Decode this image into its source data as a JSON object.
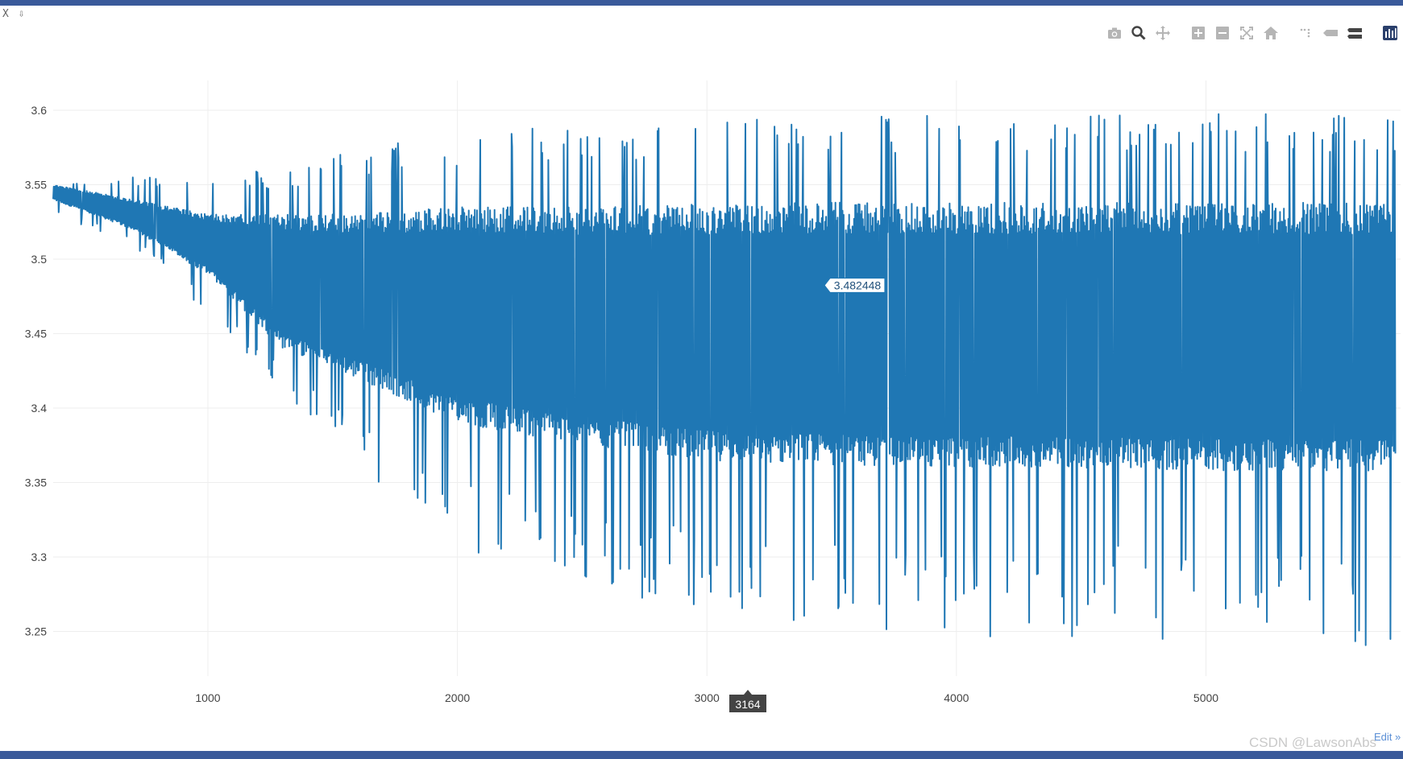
{
  "toolbar": {
    "corner_glyphs": "X ⇩",
    "buttons": [
      {
        "name": "camera-icon",
        "glyph": "📷"
      },
      {
        "name": "zoom-icon",
        "glyph": "🔍"
      },
      {
        "name": "pan-icon",
        "glyph": "✥"
      },
      {
        "name": "zoom-in-icon",
        "glyph": "⊞"
      },
      {
        "name": "zoom-out-icon",
        "glyph": "⊟"
      },
      {
        "name": "autoscale-icon",
        "glyph": "⤢"
      },
      {
        "name": "home-icon",
        "glyph": "⌂"
      },
      {
        "name": "spike-lines-icon",
        "glyph": "⋰"
      },
      {
        "name": "hover-closest-icon",
        "glyph": "▬"
      },
      {
        "name": "hover-compare-icon",
        "glyph": "☰"
      },
      {
        "name": "plotly-logo-icon",
        "glyph": "▮"
      }
    ]
  },
  "chart_data": {
    "type": "line",
    "x_range": [
      380,
      5780
    ],
    "y_range": [
      3.22,
      3.62
    ],
    "x_ticks": [
      1000,
      2000,
      3000,
      4000,
      5000
    ],
    "x_tick_labels": [
      "1000",
      "2000",
      "3000",
      "4000",
      "5000"
    ],
    "y_ticks": [
      3.25,
      3.3,
      3.35,
      3.4,
      3.45,
      3.5,
      3.55,
      3.6
    ],
    "y_tick_labels": [
      "3.25",
      "3.3",
      "3.35",
      "3.4",
      "3.45",
      "3.5",
      "3.55",
      "3.6"
    ],
    "grid": true,
    "series_color": "#1f77b4",
    "series": [
      {
        "x_start": 380,
        "x_end": 5760,
        "envelope_x": [
          380,
          700,
          1000,
          1300,
          1600,
          2000,
          2500,
          3000,
          3500,
          4000,
          4500,
          5000,
          5500,
          5760
        ],
        "dense_upper": [
          3.55,
          3.54,
          3.53,
          3.53,
          3.53,
          3.535,
          3.535,
          3.537,
          3.538,
          3.538,
          3.538,
          3.538,
          3.538,
          3.538
        ],
        "dense_lower": [
          3.54,
          3.52,
          3.49,
          3.44,
          3.42,
          3.39,
          3.375,
          3.365,
          3.362,
          3.36,
          3.36,
          3.358,
          3.358,
          3.358
        ],
        "spike_max": [
          3.55,
          3.555,
          3.56,
          3.56,
          3.575,
          3.585,
          3.59,
          3.595,
          3.598,
          3.598,
          3.6,
          3.6,
          3.6,
          3.6
        ],
        "spike_min": [
          3.53,
          3.51,
          3.46,
          3.41,
          3.36,
          3.3,
          3.28,
          3.26,
          3.25,
          3.245,
          3.245,
          3.242,
          3.24,
          3.238
        ]
      }
    ],
    "hover": {
      "x": 3164,
      "y": 3.482448,
      "x_label": "3164",
      "y_label": "3.482448"
    }
  },
  "footer": {
    "edit_label": "Edit »",
    "watermark": "CSDN @LawsonAbs"
  }
}
